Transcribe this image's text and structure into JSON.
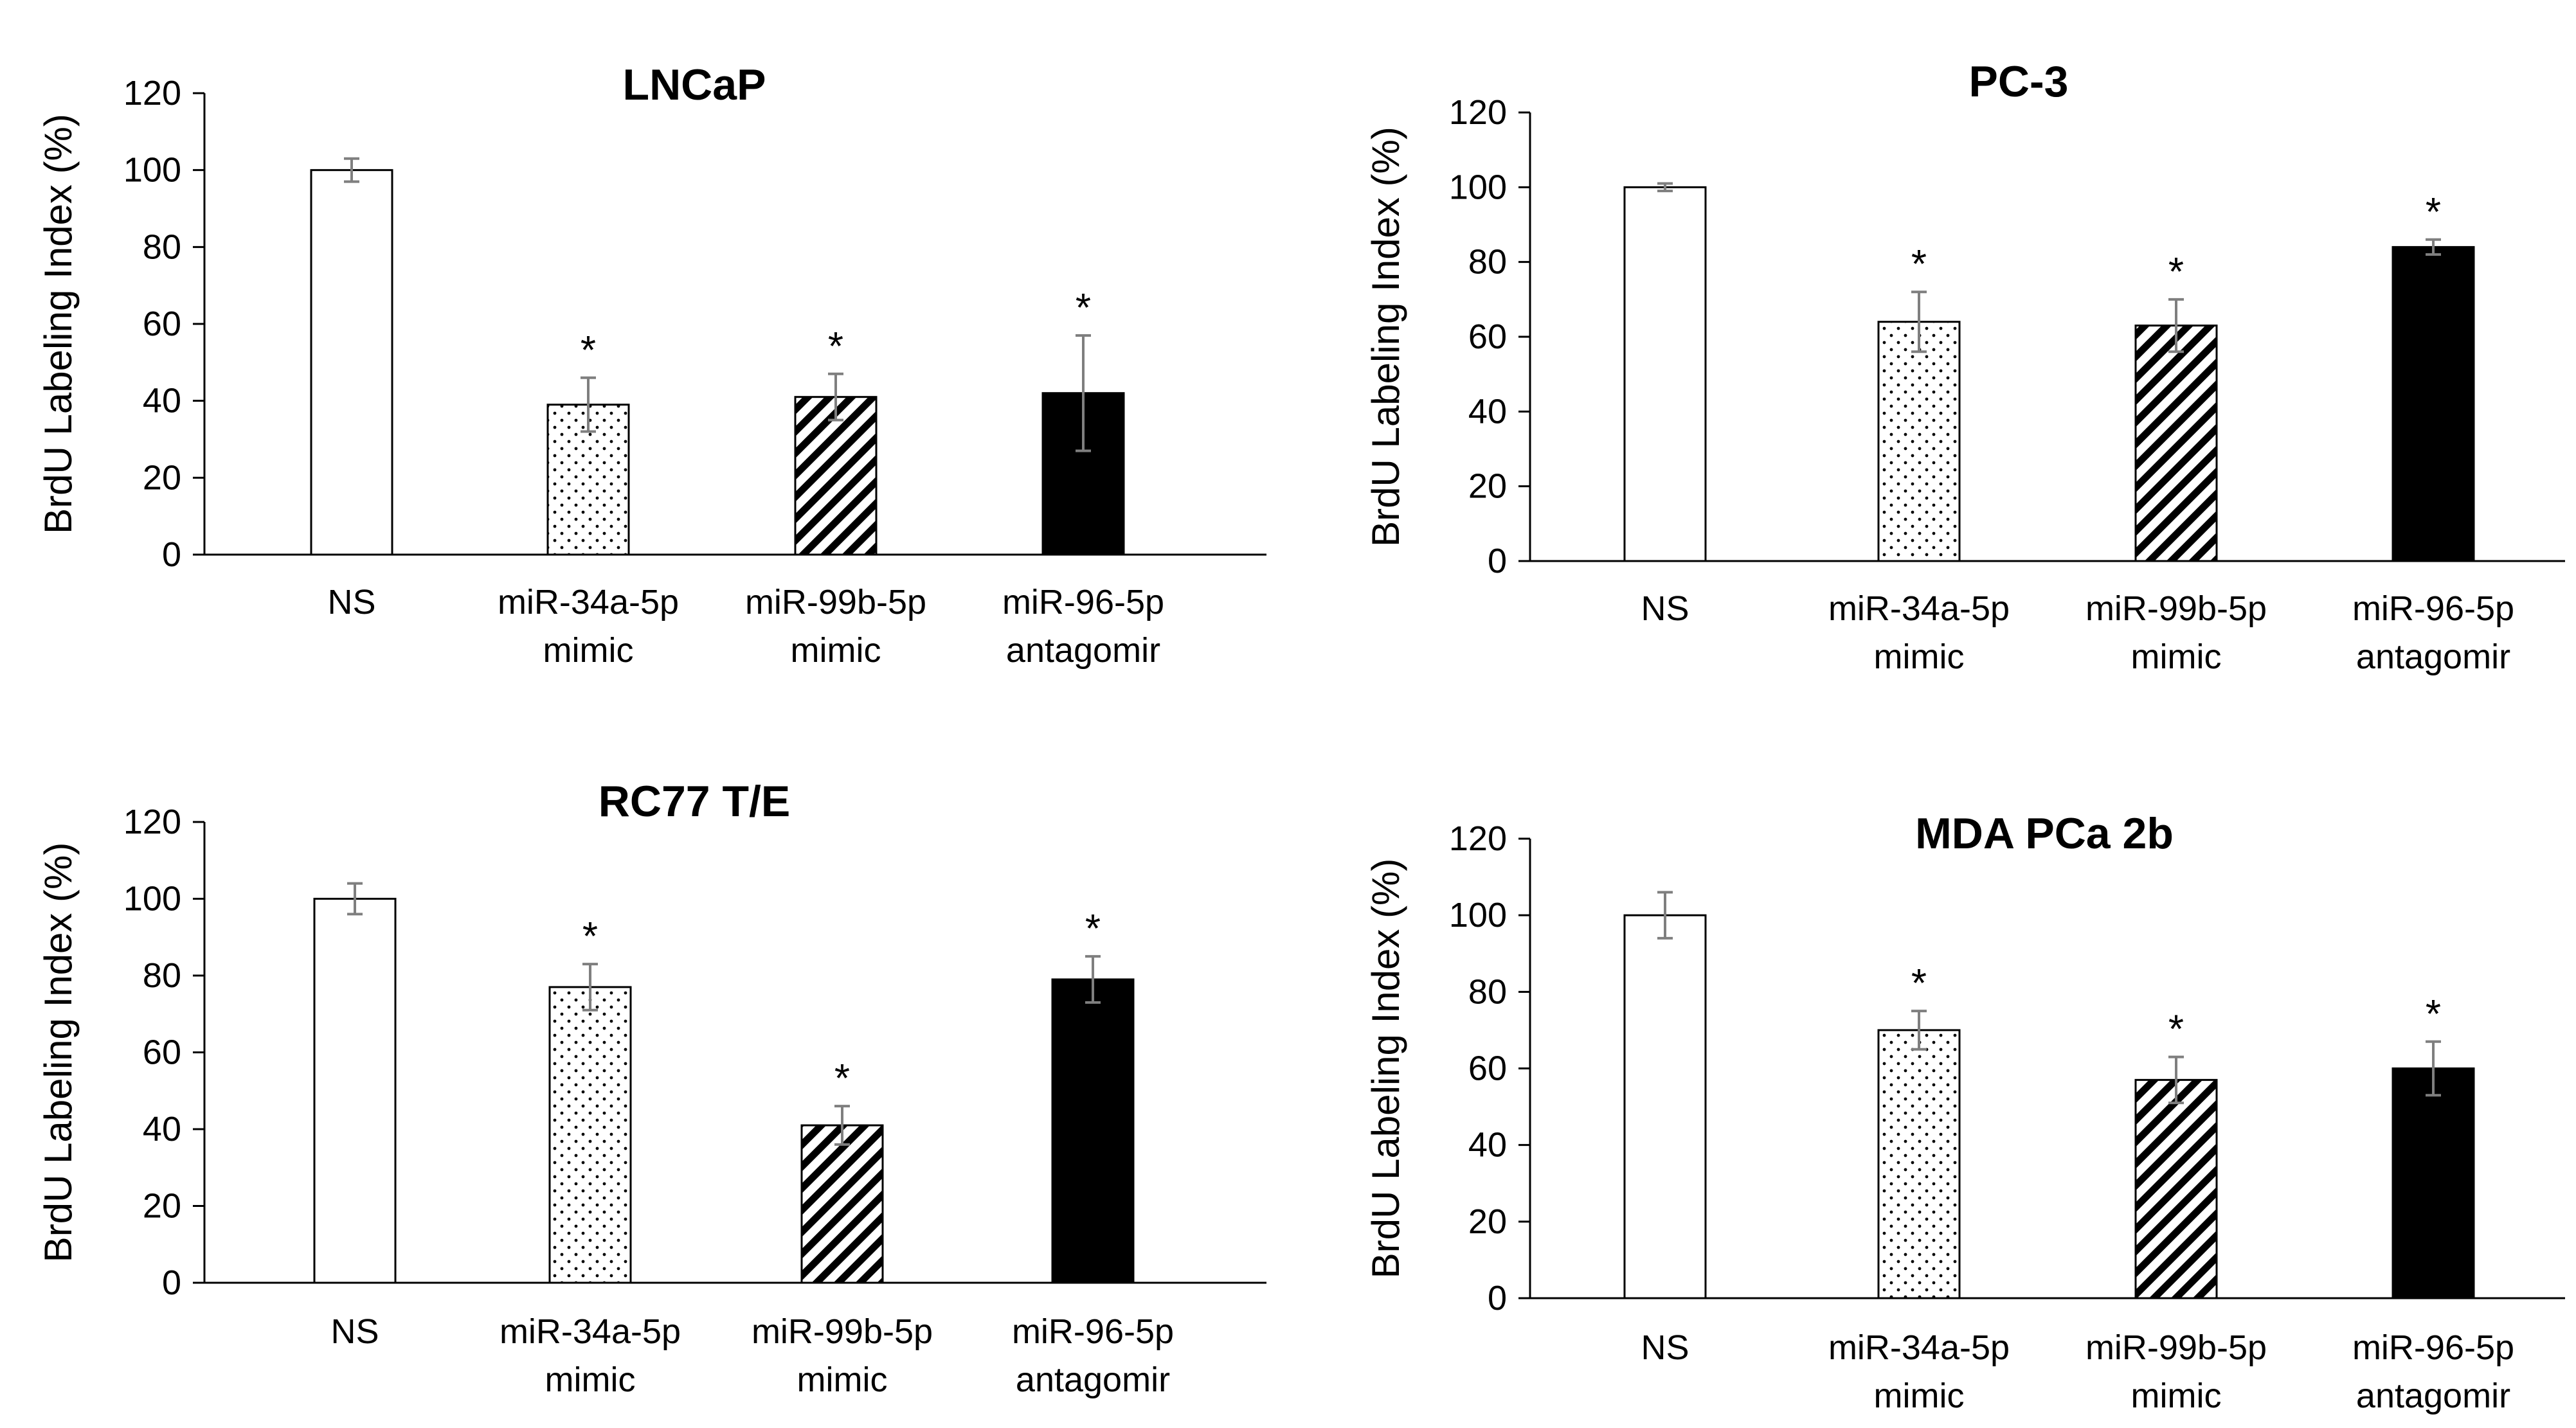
{
  "figure": {
    "description_text": ""
  },
  "colors": {
    "axis": "#000000",
    "error_bar": "#7f7f7f",
    "bar_edge": "#000000",
    "solid_fill": "#000000",
    "open_fill": "#ffffff"
  },
  "chart_data": [
    {
      "type": "bar",
      "title": "LNCaP",
      "xlabel": "",
      "ylabel": "BrdU Labeling Index (%)",
      "ylim": [
        0,
        120
      ],
      "yticks": [
        "0",
        "20",
        "40",
        "60",
        "80",
        "100",
        "120"
      ],
      "categories": [
        [
          "NS"
        ],
        [
          "miR-34a-5p",
          "mimic"
        ],
        [
          "miR-99b-5p",
          "mimic"
        ],
        [
          "miR-96-5p",
          "antagomir"
        ]
      ],
      "values": [
        100,
        39,
        41,
        42
      ],
      "errors": [
        3,
        7,
        6,
        15
      ],
      "significance": [
        "",
        "*",
        "*",
        "*"
      ],
      "patterns": [
        "open",
        "dots",
        "hatch",
        "solid"
      ]
    },
    {
      "type": "bar",
      "title": "PC-3",
      "xlabel": "",
      "ylabel": "BrdU Labeling Index (%)",
      "ylim": [
        0,
        120
      ],
      "yticks": [
        "0",
        "20",
        "40",
        "60",
        "80",
        "100",
        "120"
      ],
      "categories": [
        [
          "NS"
        ],
        [
          "miR-34a-5p",
          "mimic"
        ],
        [
          "miR-99b-5p",
          "mimic"
        ],
        [
          "miR-96-5p",
          "antagomir"
        ]
      ],
      "values": [
        100,
        64,
        63,
        84
      ],
      "errors": [
        1,
        8,
        7,
        2
      ],
      "significance": [
        "",
        "*",
        "*",
        "*"
      ],
      "patterns": [
        "open",
        "dots",
        "hatch",
        "solid"
      ]
    },
    {
      "type": "bar",
      "title": "RC77 T/E",
      "xlabel": "",
      "ylabel": "BrdU Labeling Index (%)",
      "ylim": [
        0,
        120
      ],
      "yticks": [
        "0",
        "20",
        "40",
        "60",
        "80",
        "100",
        "120"
      ],
      "categories": [
        [
          "NS"
        ],
        [
          "miR-34a-5p",
          "mimic"
        ],
        [
          "miR-99b-5p",
          "mimic"
        ],
        [
          "miR-96-5p",
          "antagomir"
        ]
      ],
      "values": [
        100,
        77,
        41,
        79
      ],
      "errors": [
        4,
        6,
        5,
        6
      ],
      "significance": [
        "",
        "*",
        "*",
        "*"
      ],
      "patterns": [
        "open",
        "dots",
        "hatch",
        "solid"
      ]
    },
    {
      "type": "bar",
      "title": "MDA PCa 2b",
      "xlabel": "",
      "ylabel": "BrdU Labeling Index (%)",
      "ylim": [
        0,
        120
      ],
      "yticks": [
        "0",
        "20",
        "40",
        "60",
        "80",
        "100",
        "120"
      ],
      "categories": [
        [
          "NS"
        ],
        [
          "miR-34a-5p",
          "mimic"
        ],
        [
          "miR-99b-5p",
          "mimic"
        ],
        [
          "miR-96-5p",
          "antagomir"
        ]
      ],
      "values": [
        100,
        70,
        57,
        60
      ],
      "errors": [
        6,
        5,
        6,
        7
      ],
      "significance": [
        "",
        "*",
        "*",
        "*"
      ],
      "patterns": [
        "open",
        "dots",
        "hatch",
        "solid"
      ]
    }
  ]
}
